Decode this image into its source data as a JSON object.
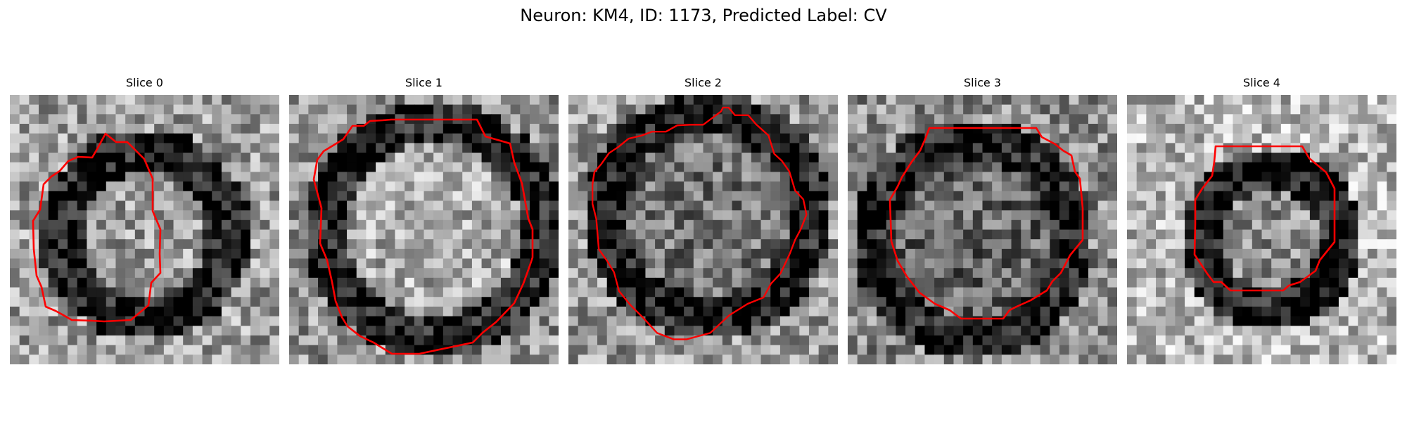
{
  "figure": {
    "title": "Neuron: KM4, ID: 1173, Predicted Label: CV",
    "panels": [
      {
        "title": "Slice 0",
        "image": "grayscale microscopy slice (noisy pixel grid)",
        "contour_color": "#ff0000"
      },
      {
        "title": "Slice 1",
        "image": "grayscale microscopy slice (noisy pixel grid)",
        "contour_color": "#ff0000"
      },
      {
        "title": "Slice 2",
        "image": "grayscale microscopy slice (noisy pixel grid)",
        "contour_color": "#ff0000"
      },
      {
        "title": "Slice 3",
        "image": "grayscale microscopy slice (noisy pixel grid)",
        "contour_color": "#ff0000"
      },
      {
        "title": "Slice 4",
        "image": "grayscale microscopy slice (noisy pixel grid)",
        "contour_color": "#ff0000"
      }
    ]
  }
}
